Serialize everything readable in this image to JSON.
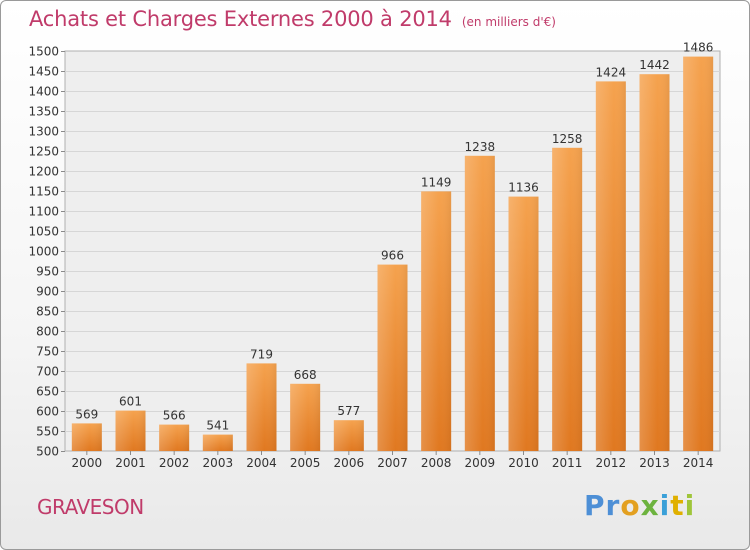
{
  "title": "Achats et Charges Externes 2000 à 2014",
  "subtitle": "(en milliers d'€)",
  "commune": "GRAVESON",
  "logo": {
    "letters": [
      "P",
      "r",
      "o",
      "x",
      "i",
      "t",
      "i"
    ],
    "colors": [
      "#4d8fd6",
      "#4d8fd6",
      "#e3a020",
      "#6db33f",
      "#3aa0d8",
      "#e0b000",
      "#9fc53a"
    ]
  },
  "colors": {
    "bar_top": "#f5a24e",
    "bar_bottom": "#e07820",
    "title": "#c03b6a",
    "grid": "#d6d6d6",
    "plot_bg": "#eeeeee"
  },
  "chart_data": {
    "type": "bar",
    "title": "Achats et Charges Externes 2000 à 2014",
    "subtitle": "(en milliers d'€)",
    "xlabel": "",
    "ylabel": "",
    "categories": [
      "2000",
      "2001",
      "2002",
      "2003",
      "2004",
      "2005",
      "2006",
      "2007",
      "2008",
      "2009",
      "2010",
      "2011",
      "2012",
      "2013",
      "2014"
    ],
    "values": [
      569,
      601,
      566,
      541,
      719,
      668,
      577,
      966,
      1149,
      1238,
      1136,
      1258,
      1424,
      1442,
      1486
    ],
    "ylim": [
      500,
      1500
    ],
    "ytick_step": 50,
    "grid": true,
    "legend": "none"
  }
}
